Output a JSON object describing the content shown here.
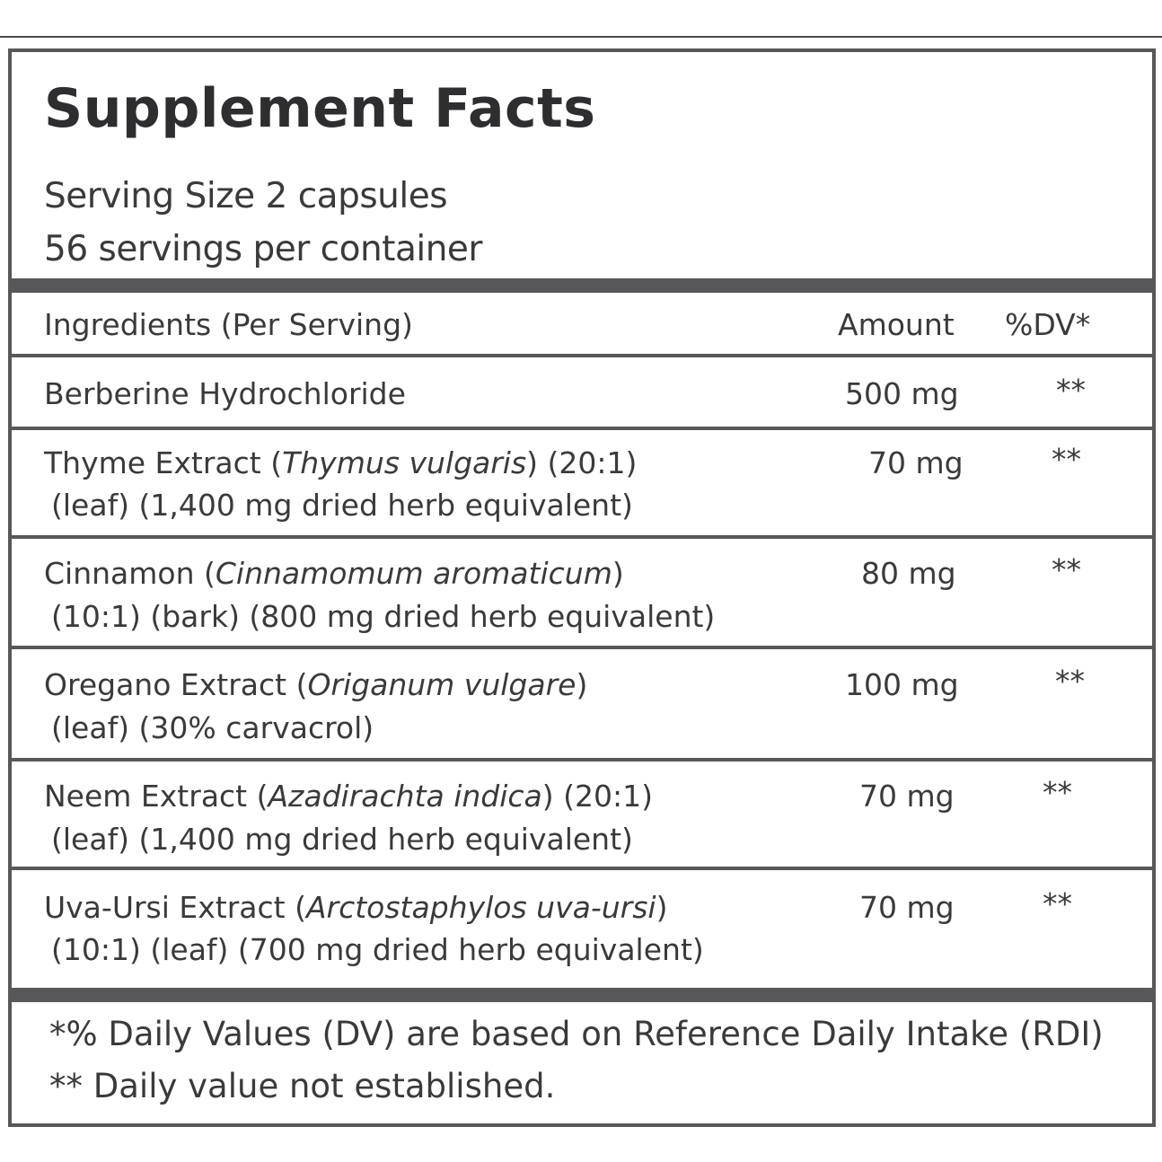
{
  "label": {
    "title": "Supplement Facts",
    "serving_size": "Serving Size 2 capsules",
    "servings_per_container": "56 servings per container"
  },
  "table": {
    "headers": {
      "ingredient": "Ingredients (Per Serving)",
      "amount": "Amount",
      "dv": "%DV*"
    },
    "rows": [
      {
        "name": "Berberine Hydrochloride",
        "latin": "",
        "after": "",
        "line2": "",
        "amount": "500 mg",
        "dv": "**"
      },
      {
        "name": "Thyme Extract (",
        "latin": "Thymus vulgaris",
        "after": ") (20:1)",
        "line2": "(leaf) (1,400 mg dried herb equivalent)",
        "amount": "70 mg",
        "dv": "**"
      },
      {
        "name": "Cinnamon (",
        "latin": "Cinnamomum aromaticum",
        "after": ")",
        "line2": "(10:1) (bark) (800 mg dried herb equivalent)",
        "amount": "80 mg",
        "dv": "**"
      },
      {
        "name": "Oregano Extract (",
        "latin": "Origanum vulgare",
        "after": ")",
        "line2": "(leaf) (30% carvacrol)",
        "amount": "100 mg",
        "dv": "**"
      },
      {
        "name": "Neem Extract (",
        "latin": "Azadirachta indica",
        "after": ") (20:1)",
        "line2": "(leaf) (1,400 mg dried herb equivalent)",
        "amount": "70 mg",
        "dv": "**"
      },
      {
        "name": "Uva-Ursi Extract (",
        "latin": "Arctostaphylos uva-ursi",
        "after": ")",
        "line2": "(10:1) (leaf) (700 mg dried herb equivalent)",
        "amount": "70 mg",
        "dv": "**"
      }
    ]
  },
  "footnotes": {
    "dv_note": "*% Daily Values (DV) are based on Reference Daily Intake (RDI)",
    "not_established": "** Daily value not established."
  }
}
